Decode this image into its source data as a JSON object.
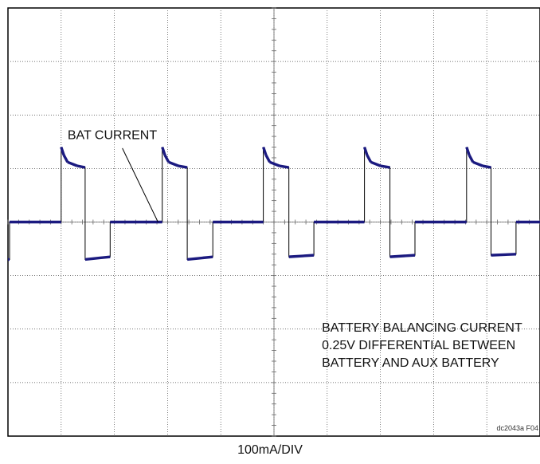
{
  "chart_data": {
    "type": "line",
    "title": "",
    "xlabel": "",
    "ylabel": "",
    "grid": true,
    "x_divisions": 10,
    "y_divisions": 8,
    "xlim": [
      0,
      10
    ],
    "ylim": [
      -4,
      4
    ],
    "y_units_per_div": "100mA/DIV",
    "series": [
      {
        "name": "",
        "color": "#1b1a80",
        "points": [
          [
            0.0,
            -0.7
          ],
          [
            0.03,
            -0.7
          ],
          [
            0.03,
            0.0
          ],
          [
            1.0,
            0.0
          ],
          [
            1.0,
            1.4
          ],
          [
            1.05,
            1.25
          ],
          [
            1.12,
            1.12
          ],
          [
            1.3,
            1.05
          ],
          [
            1.45,
            1.02
          ],
          [
            1.45,
            -0.7
          ],
          [
            1.92,
            -0.65
          ],
          [
            1.92,
            0.0
          ],
          [
            2.9,
            0.0
          ],
          [
            2.9,
            1.4
          ],
          [
            2.95,
            1.25
          ],
          [
            3.02,
            1.12
          ],
          [
            3.2,
            1.05
          ],
          [
            3.37,
            1.02
          ],
          [
            3.37,
            -0.7
          ],
          [
            3.85,
            -0.65
          ],
          [
            3.85,
            0.0
          ],
          [
            4.8,
            0.0
          ],
          [
            4.8,
            1.4
          ],
          [
            4.85,
            1.25
          ],
          [
            4.92,
            1.12
          ],
          [
            5.1,
            1.05
          ],
          [
            5.28,
            1.02
          ],
          [
            5.28,
            -0.65
          ],
          [
            5.75,
            -0.62
          ],
          [
            5.75,
            0.0
          ],
          [
            6.7,
            0.0
          ],
          [
            6.7,
            1.4
          ],
          [
            6.75,
            1.25
          ],
          [
            6.82,
            1.12
          ],
          [
            7.0,
            1.05
          ],
          [
            7.18,
            1.02
          ],
          [
            7.18,
            -0.65
          ],
          [
            7.65,
            -0.62
          ],
          [
            7.65,
            0.0
          ],
          [
            8.62,
            0.0
          ],
          [
            8.62,
            1.4
          ],
          [
            8.67,
            1.25
          ],
          [
            8.74,
            1.12
          ],
          [
            8.92,
            1.05
          ],
          [
            9.08,
            1.02
          ],
          [
            9.08,
            -0.62
          ],
          [
            9.55,
            -0.6
          ],
          [
            9.55,
            0.0
          ],
          [
            10.0,
            0.0
          ]
        ]
      }
    ],
    "annotations": [
      {
        "text": "BAT CURRENT",
        "lines": [
          "BAT CURRENT"
        ],
        "text_at": [
          1.12,
          1.55
        ],
        "arrow_from": [
          2.15,
          1.38
        ],
        "arrow_to": [
          2.82,
          0.0
        ]
      },
      {
        "text": "BATTERY BALANCING CURRENT 0.25V DIFFERENTIAL BETWEEN BATTERY AND AUX BATTERY",
        "lines": [
          "BATTERY BALANCING CURRENT",
          "0.25V DIFFERENTIAL BETWEEN",
          "BATTERY AND AUX BATTERY"
        ],
        "text_at": [
          5.9,
          -2.05
        ]
      }
    ]
  },
  "footer": {
    "scale_label": "100mA/DIV",
    "figure_id": "dc2043a F04"
  }
}
